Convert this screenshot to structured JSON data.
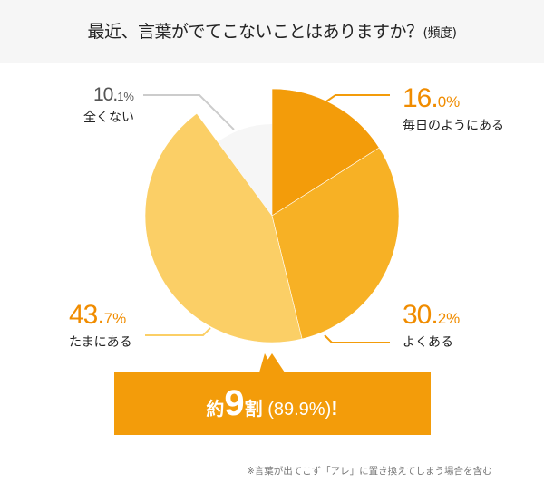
{
  "title": "最近、言葉がでてこないことはありますか？",
  "title_suffix": "(頻度)",
  "chart_data": {
    "type": "pie",
    "start": "top",
    "direction": "clockwise",
    "slices": [
      {
        "label": "毎日のようにある",
        "value": 16.0,
        "value_main": "16.",
        "value_sub": "0%",
        "color": "#f39c0a"
      },
      {
        "label": "よくある",
        "value": 30.2,
        "value_main": "30.",
        "value_sub": "2%",
        "color": "#f7b125"
      },
      {
        "label": "たまにある",
        "value": 43.7,
        "value_main": "43.",
        "value_sub": "7%",
        "color": "#fbcf66"
      },
      {
        "label": "全くない",
        "value": 10.1,
        "value_main": "10.",
        "value_sub": "1%",
        "color": "#f6f6f6"
      }
    ]
  },
  "callout": {
    "pre": "約",
    "big": "9",
    "post": "割",
    "paren": "(89.9%)",
    "bang": "!",
    "color": "#f39c0a"
  },
  "note": "※言葉が出てこず「アレ」に置き換えてしまう場合を含む"
}
